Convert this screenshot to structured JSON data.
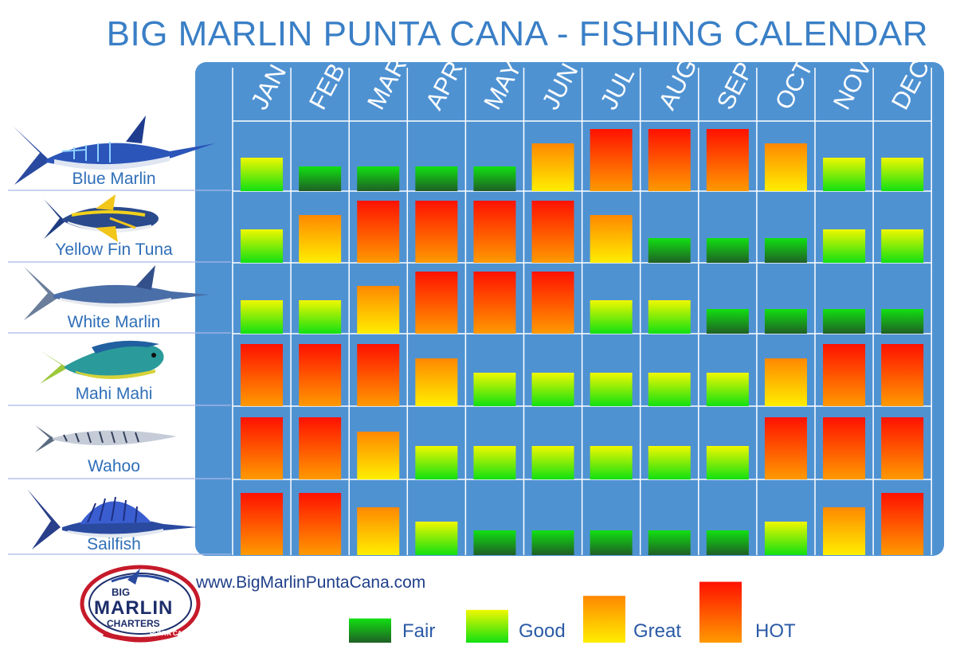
{
  "title": "BIG MARLIN PUNTA CANA - FISHING CALENDAR",
  "website": "www.BigMarlinPuntaCana.com",
  "logo": {
    "line1": "BIG",
    "line2": "MARLIN",
    "line3": "CHARTERS",
    "line4": "PUNTA CANA"
  },
  "colors": {
    "panel": "#4f92d2",
    "grid": "#ffffff",
    "fair_top": "#11e011",
    "fair_bottom": "#1f5f25",
    "good_top": "#f0f800",
    "good_bottom": "#11e011",
    "great_top": "#ff8800",
    "great_bottom": "#ffee00",
    "hot_top": "#ff1100",
    "hot_bottom": "#ff9a00",
    "title": "#3a7fc6"
  },
  "legend": [
    {
      "key": "fair",
      "label": "Fair",
      "level": 1
    },
    {
      "key": "good",
      "label": "Good",
      "level": 2
    },
    {
      "key": "great",
      "label": "Great",
      "level": 3
    },
    {
      "key": "hot",
      "label": "HOT",
      "level": 4
    }
  ],
  "chart_data": {
    "type": "bar",
    "categories": [
      "JAN",
      "FEB",
      "MAR",
      "APR",
      "MAY",
      "JUN",
      "JUL",
      "AUG",
      "SEP",
      "OCT",
      "NOV",
      "DEC"
    ],
    "scale": [
      "Fair",
      "Good",
      "Great",
      "HOT"
    ],
    "ylim": [
      0,
      4
    ],
    "series": [
      {
        "name": "Blue Marlin",
        "values": [
          2,
          1,
          1,
          1,
          1,
          3,
          4,
          4,
          4,
          3,
          2,
          2
        ]
      },
      {
        "name": "Yellow Fin Tuna",
        "values": [
          2,
          3,
          4,
          4,
          4,
          4,
          3,
          1,
          1,
          1,
          2,
          2
        ]
      },
      {
        "name": "White Marlin",
        "values": [
          2,
          2,
          3,
          4,
          4,
          4,
          2,
          2,
          1,
          1,
          1,
          1
        ]
      },
      {
        "name": "Mahi Mahi",
        "values": [
          4,
          4,
          4,
          3,
          2,
          2,
          2,
          2,
          2,
          3,
          4,
          4
        ]
      },
      {
        "name": "Wahoo",
        "values": [
          4,
          4,
          3,
          2,
          2,
          2,
          2,
          2,
          2,
          4,
          4,
          4
        ]
      },
      {
        "name": "Sailfish",
        "values": [
          4,
          4,
          3,
          2,
          1,
          1,
          1,
          1,
          1,
          2,
          3,
          4
        ]
      }
    ]
  }
}
